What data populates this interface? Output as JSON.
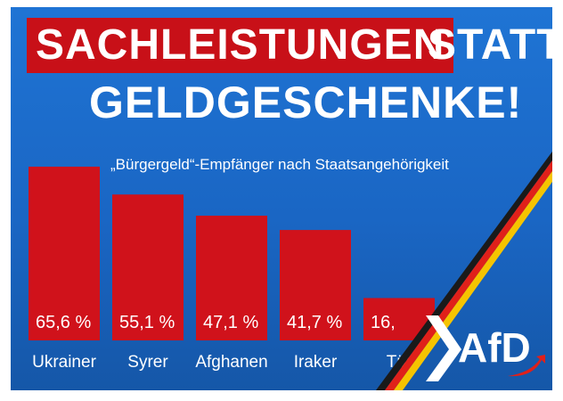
{
  "headline": {
    "part1": "SACHLEISTUNGEN",
    "part2": "STATT",
    "line2": "GELDGESCHENKE!"
  },
  "logo": {
    "text": "AfD"
  },
  "colors": {
    "background": "#1a66c4",
    "bar": "#d0121b",
    "headline_bar": "#c81018",
    "text": "#ffffff"
  },
  "chart_data": {
    "type": "bar",
    "title": "„Bürgergeld“-Empfänger nach Staatsangehörigkeit",
    "categories": [
      "Ukrainer",
      "Syrer",
      "Afghanen",
      "Iraker",
      "Tür"
    ],
    "values": [
      65.6,
      55.1,
      47.1,
      41.7,
      16.0
    ],
    "value_labels": [
      "65,6 %",
      "55,1 %",
      "47,1 %",
      "41,7 %",
      "16,"
    ],
    "unit": "%",
    "ylim": [
      0,
      70
    ],
    "grid": false,
    "legend": "none"
  }
}
